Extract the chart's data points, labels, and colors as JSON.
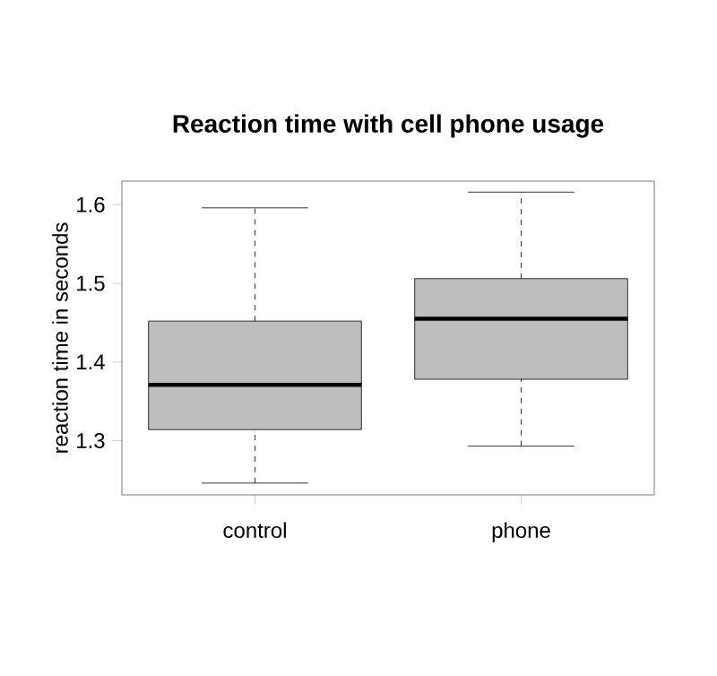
{
  "chart_data": {
    "type": "box",
    "title": "Reaction time with cell phone usage",
    "ylabel": "reaction time in seconds",
    "categories": [
      "control",
      "phone"
    ],
    "boxes": [
      {
        "low": 1.246,
        "q1": 1.314,
        "median": 1.371,
        "q3": 1.452,
        "high": 1.596
      },
      {
        "low": 1.293,
        "q1": 1.378,
        "median": 1.455,
        "q3": 1.506,
        "high": 1.616
      }
    ],
    "color": "#bebebe",
    "ylim": [
      1.231,
      1.63
    ],
    "yticks": [
      1.3,
      1.4,
      1.5,
      1.6
    ]
  }
}
